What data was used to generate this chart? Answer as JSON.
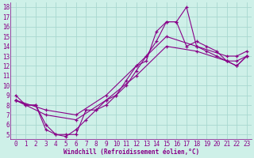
{
  "xlabel": "Windchill (Refroidissement éolien,°C)",
  "bg_color": "#cef0e8",
  "grid_color": "#a8d8d0",
  "line_color": "#880088",
  "xlim": [
    -0.5,
    23.5
  ],
  "ylim": [
    4.5,
    18.5
  ],
  "xticks": [
    0,
    1,
    2,
    3,
    4,
    5,
    6,
    7,
    8,
    9,
    10,
    11,
    12,
    13,
    14,
    15,
    16,
    17,
    18,
    19,
    20,
    21,
    22,
    23
  ],
  "yticks": [
    5,
    6,
    7,
    8,
    9,
    10,
    11,
    12,
    13,
    14,
    15,
    16,
    17,
    18
  ],
  "series1_x": [
    0,
    1,
    2,
    3,
    4,
    5,
    6,
    7,
    8,
    9,
    10,
    11,
    12,
    13,
    14,
    15,
    16,
    17,
    18,
    19,
    20,
    21,
    22,
    23
  ],
  "series1_y": [
    9,
    8,
    8,
    6,
    5,
    5,
    5,
    7.5,
    7.5,
    8.5,
    9,
    10.5,
    12,
    12.5,
    15.5,
    16.5,
    16.5,
    18,
    14,
    13.5,
    13,
    12.5,
    12,
    13
  ],
  "series2_x": [
    0,
    1,
    2,
    3,
    4,
    5,
    6,
    7,
    8,
    9,
    10,
    11,
    12,
    13,
    14,
    15,
    16,
    17,
    18,
    19,
    20,
    21,
    22,
    23
  ],
  "series2_y": [
    8.5,
    8,
    8,
    5.5,
    5,
    4.8,
    5.5,
    6.5,
    7.5,
    8,
    9,
    10,
    11.5,
    13,
    14.5,
    16.5,
    16.5,
    14,
    14.5,
    14,
    13.5,
    12.5,
    12,
    13
  ],
  "series3_x": [
    0,
    3,
    6,
    9,
    12,
    15,
    18,
    21,
    22,
    23
  ],
  "series3_y": [
    8.5,
    7,
    6.5,
    8.5,
    11,
    14,
    13.5,
    12.5,
    12.5,
    13
  ],
  "series4_x": [
    0,
    3,
    6,
    9,
    12,
    15,
    18,
    21,
    22,
    23
  ],
  "series4_y": [
    8.5,
    7.5,
    7,
    9,
    12,
    15,
    14,
    13,
    13,
    13.5
  ],
  "font_color": "#880088",
  "tick_fontsize": 5.5,
  "xlabel_fontsize": 5.5
}
